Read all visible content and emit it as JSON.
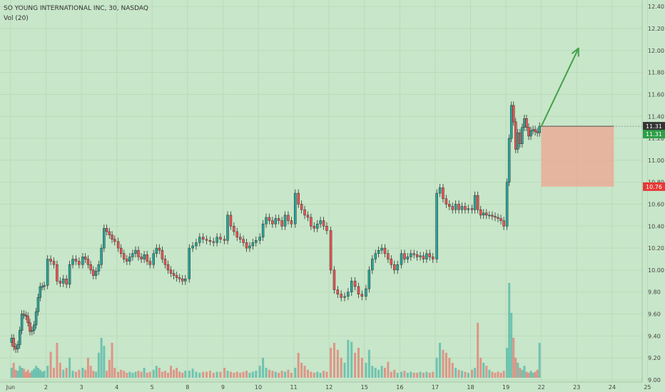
{
  "header": {
    "symbol_line": "SO YOUNG INTERNATIONAL INC, 30, NASDAQ",
    "volume_line": "Vol (20)"
  },
  "colors": {
    "background": "#c8e6c9",
    "up": "#26a69a",
    "down": "#ef5350",
    "arrow": "#43a047",
    "zone": "#f0a490"
  },
  "price_badges": {
    "current_top": "11.31",
    "current_bottom": "11.31",
    "stop": "10.76"
  },
  "chart_data": {
    "type": "candlestick",
    "title": "SO YOUNG INTERNATIONAL INC, 30, NASDAQ",
    "ylim": [
      8.98,
      12.46
    ],
    "y_ticks": [
      "12.40",
      "12.20",
      "12.00",
      "11.80",
      "11.60",
      "11.40",
      "11.20",
      "11.00",
      "10.80",
      "10.60",
      "10.40",
      "10.20",
      "10.00",
      "9.80",
      "9.60",
      "9.40",
      "9.20",
      "9.00"
    ],
    "x_ticks": [
      "Jun",
      "2",
      "3",
      "4",
      "5",
      "8",
      "9",
      "10",
      "11",
      "12",
      "15",
      "16",
      "17",
      "18",
      "19",
      "22",
      "23",
      "24",
      "25"
    ],
    "xlim": [
      -0.3,
      17.85
    ],
    "volume_label": "Vol (20)",
    "days": [
      {
        "label": "Jun",
        "closes": [
          9.38,
          9.3,
          9.28,
          9.32,
          9.45,
          9.6,
          9.59,
          9.58,
          9.52,
          9.44,
          9.45,
          9.5,
          9.62,
          9.75,
          9.85,
          9.85,
          9.86
        ],
        "vols": [
          0.1,
          0.15,
          0.08,
          0.07,
          0.12,
          0.1,
          0.09,
          0.06,
          0.08,
          0.05,
          0.07,
          0.09,
          0.12,
          0.1,
          0.08,
          0.06,
          0.07
        ]
      },
      {
        "label": "2",
        "closes": [
          10.1,
          10.08,
          10.05,
          9.9,
          9.88,
          9.92,
          9.87,
          10.05,
          10.1,
          10.08,
          10.05
        ],
        "vols": [
          0.12,
          0.26,
          0.1,
          0.35,
          0.15,
          0.08,
          0.1,
          0.2,
          0.07,
          0.06,
          0.08
        ]
      },
      {
        "label": "3",
        "closes": [
          10.12,
          10.1,
          10.05,
          10.0,
          9.95,
          9.99,
          10.05,
          10.2,
          10.38,
          10.35,
          10.32,
          10.28,
          10.26
        ],
        "vols": [
          0.1,
          0.08,
          0.2,
          0.12,
          0.07,
          0.06,
          0.25,
          0.4,
          0.32,
          0.07,
          0.18,
          0.35,
          0.1
        ]
      },
      {
        "label": "4",
        "closes": [
          10.2,
          10.15,
          10.1,
          10.08,
          10.12,
          10.15,
          10.18,
          10.12,
          10.1,
          10.14,
          10.08,
          10.05
        ],
        "vols": [
          0.06,
          0.08,
          0.07,
          0.05,
          0.06,
          0.05,
          0.06,
          0.07,
          0.06,
          0.1,
          0.05,
          0.06
        ]
      },
      {
        "label": "5",
        "closes": [
          10.15,
          10.2,
          10.18,
          10.1,
          10.05,
          10.0,
          9.97,
          9.95,
          9.93,
          9.92,
          9.9,
          9.92
        ],
        "vols": [
          0.08,
          0.12,
          0.1,
          0.06,
          0.07,
          0.05,
          0.12,
          0.08,
          0.1,
          0.06,
          0.05,
          0.07
        ]
      },
      {
        "label": "8",
        "closes": [
          10.2,
          10.22,
          10.25,
          10.3,
          10.28,
          10.27,
          10.26,
          10.25,
          10.3,
          10.28
        ],
        "vols": [
          0.07,
          0.09,
          0.06,
          0.05,
          0.06,
          0.06,
          0.07,
          0.05,
          0.06,
          0.06
        ]
      },
      {
        "label": "9",
        "closes": [
          10.27,
          10.5,
          10.4,
          10.35,
          10.3,
          10.28,
          10.25,
          10.2,
          10.22,
          10.25,
          10.27
        ],
        "vols": [
          0.1,
          0.07,
          0.06,
          0.05,
          0.06,
          0.05,
          0.06,
          0.07,
          0.05,
          0.06,
          0.07
        ]
      },
      {
        "label": "10",
        "closes": [
          10.3,
          10.42,
          10.48,
          10.45,
          10.42,
          10.47,
          10.45,
          10.4,
          10.5,
          10.45,
          10.42
        ],
        "vols": [
          0.12,
          0.2,
          0.1,
          0.08,
          0.07,
          0.06,
          0.05,
          0.07,
          0.06,
          0.08,
          0.05
        ]
      },
      {
        "label": "11",
        "closes": [
          10.7,
          10.6,
          10.55,
          10.5,
          10.48,
          10.4,
          10.38,
          10.42,
          10.45,
          10.4,
          10.36
        ],
        "vols": [
          0.1,
          0.25,
          0.15,
          0.12,
          0.08,
          0.06,
          0.05,
          0.06,
          0.05,
          0.07,
          0.06
        ]
      },
      {
        "label": "12",
        "closes": [
          10.0,
          9.82,
          9.78,
          9.75,
          9.76,
          9.8,
          9.9,
          9.85,
          9.78,
          9.76
        ],
        "vols": [
          0.3,
          0.35,
          0.28,
          0.2,
          0.15,
          0.38,
          0.36,
          0.25,
          0.3,
          0.2
        ]
      },
      {
        "label": "15",
        "closes": [
          9.83,
          10.0,
          10.1,
          10.15,
          10.18,
          10.2,
          10.15,
          10.1,
          10.05,
          10.0,
          10.05
        ],
        "vols": [
          0.15,
          0.28,
          0.12,
          0.1,
          0.08,
          0.12,
          0.1,
          0.16,
          0.06,
          0.08,
          0.05
        ]
      },
      {
        "label": "16",
        "closes": [
          10.15,
          10.1,
          10.12,
          10.15,
          10.14,
          10.12,
          10.13,
          10.1,
          10.15,
          10.12,
          10.1
        ],
        "vols": [
          0.06,
          0.07,
          0.05,
          0.06,
          0.05,
          0.05,
          0.06,
          0.05,
          0.06,
          0.05,
          0.06
        ]
      },
      {
        "label": "17",
        "closes": [
          10.7,
          10.75,
          10.65,
          10.6,
          10.58,
          10.55,
          10.6,
          10.55,
          10.58,
          10.55,
          10.56
        ],
        "vols": [
          0.2,
          0.35,
          0.28,
          0.25,
          0.2,
          0.15,
          0.1,
          0.08,
          0.07,
          0.06,
          0.05
        ]
      },
      {
        "label": "18",
        "closes": [
          10.55,
          10.68,
          10.55,
          10.5,
          10.52,
          10.5,
          10.5,
          10.49,
          10.48,
          10.47,
          10.45,
          10.4
        ],
        "vols": [
          0.08,
          0.1,
          0.55,
          0.2,
          0.15,
          0.12,
          0.08,
          0.06,
          0.05,
          0.06,
          0.05,
          0.07
        ]
      },
      {
        "label": "19",
        "closes": [
          10.8,
          11.2,
          11.5,
          11.35,
          11.1,
          11.25,
          11.15,
          11.3,
          11.38,
          11.3,
          11.22,
          11.27,
          11.28,
          11.26,
          11.25,
          11.31
        ],
        "vols": [
          0.3,
          0.95,
          0.65,
          0.4,
          0.2,
          0.15,
          0.1,
          0.08,
          0.12,
          0.06,
          0.05,
          0.07,
          0.05,
          0.06,
          0.08,
          0.35
        ]
      }
    ],
    "annotations": {
      "long_position": {
        "entry": 11.31,
        "stop": 10.76
      },
      "arrow": {
        "from": [
          15.0,
          11.31
        ],
        "to": [
          16.05,
          12.02
        ]
      }
    }
  }
}
